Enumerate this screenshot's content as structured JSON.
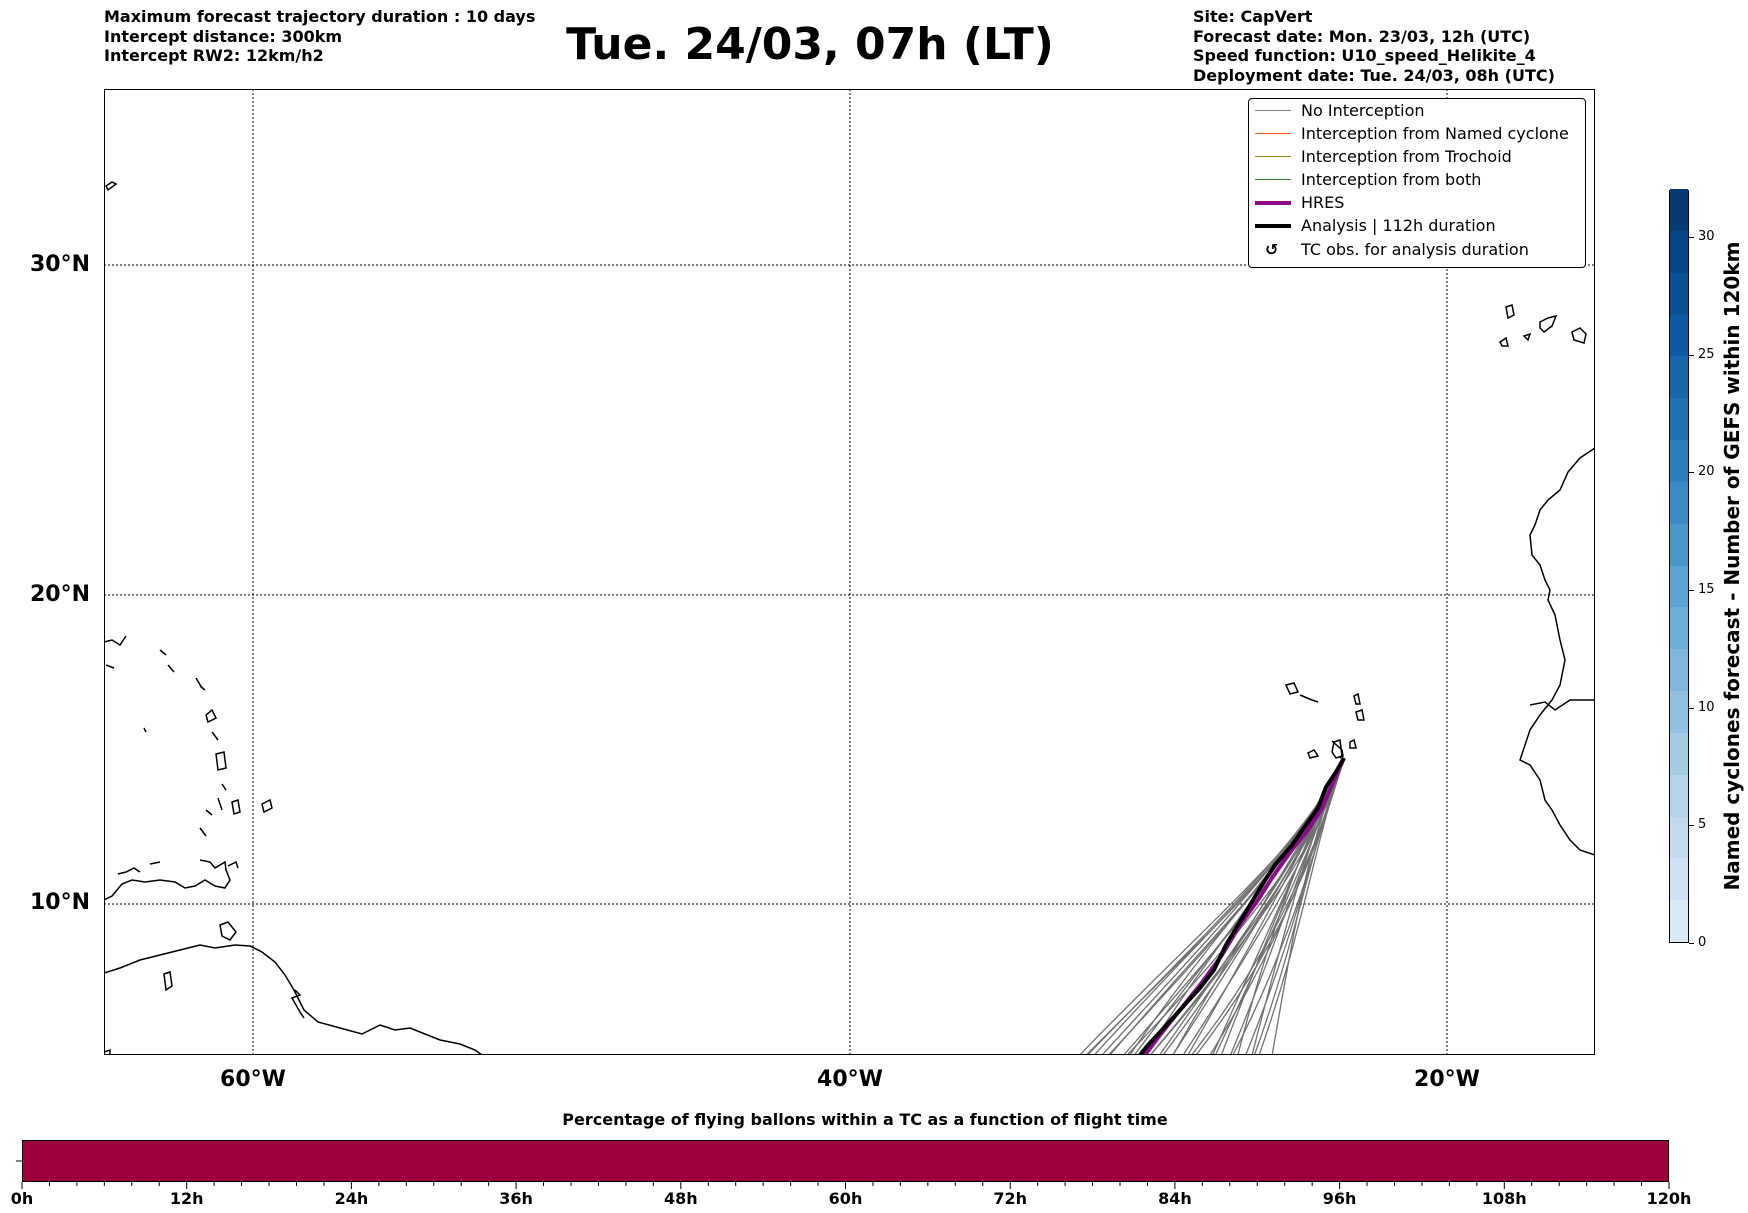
{
  "header": {
    "left_lines": [
      "Maximum forecast trajectory duration : 10 days",
      "Intercept distance: 300km",
      "Intercept RW2: 12km/h2"
    ],
    "title": "Tue. 24/03, 07h (LT)",
    "right_lines": [
      "Site: CapVert",
      "Forecast date: Mon. 23/03, 12h (UTC)",
      "Speed function: U10_speed_Helikite_4",
      "Deployment date: Tue. 24/03, 08h (UTC)"
    ]
  },
  "map": {
    "lat_labels": [
      "30°N",
      "20°N",
      "10°N"
    ],
    "lon_labels": [
      "60°W",
      "40°W",
      "20°W"
    ],
    "legend": [
      {
        "label": "No Interception",
        "color": "#808080"
      },
      {
        "label": "Interception from Named cyclone",
        "color": "#e8562a"
      },
      {
        "label": "Interception from Trochoid",
        "color": "#8a8a00"
      },
      {
        "label": "Interception from both",
        "color": "#2e8b2e"
      },
      {
        "label": "HRES",
        "color": "#8b0a8b"
      },
      {
        "label": "Analysis | 112h duration",
        "color": "#000000"
      },
      {
        "label": "TC obs. for analysis duration",
        "icon": "cyclone-icon"
      }
    ]
  },
  "colorbar": {
    "label": "Named cyclones forecast - Number of GEFS within 120km",
    "ticks": [
      "0",
      "5",
      "10",
      "15",
      "20",
      "25",
      "30"
    ],
    "colors": [
      "#dbe8f5",
      "#cfe1f2",
      "#c2d9ee",
      "#b3d3e8",
      "#a3cbe4",
      "#92c0df",
      "#80b6da",
      "#6daed6",
      "#5ba3d0",
      "#4a98c9",
      "#3b8bc2",
      "#2e7ebc",
      "#2171b5",
      "#1865ac",
      "#0f59a3",
      "#0b4f94",
      "#084585",
      "#083b73"
    ]
  },
  "bottom_bar": {
    "title": "Percentage of flying ballons within a TC as a function of flight time",
    "ticks": [
      "0h",
      "12h",
      "24h",
      "36h",
      "48h",
      "60h",
      "72h",
      "84h",
      "96h",
      "108h",
      "120h"
    ],
    "color": "#9b003c"
  }
}
